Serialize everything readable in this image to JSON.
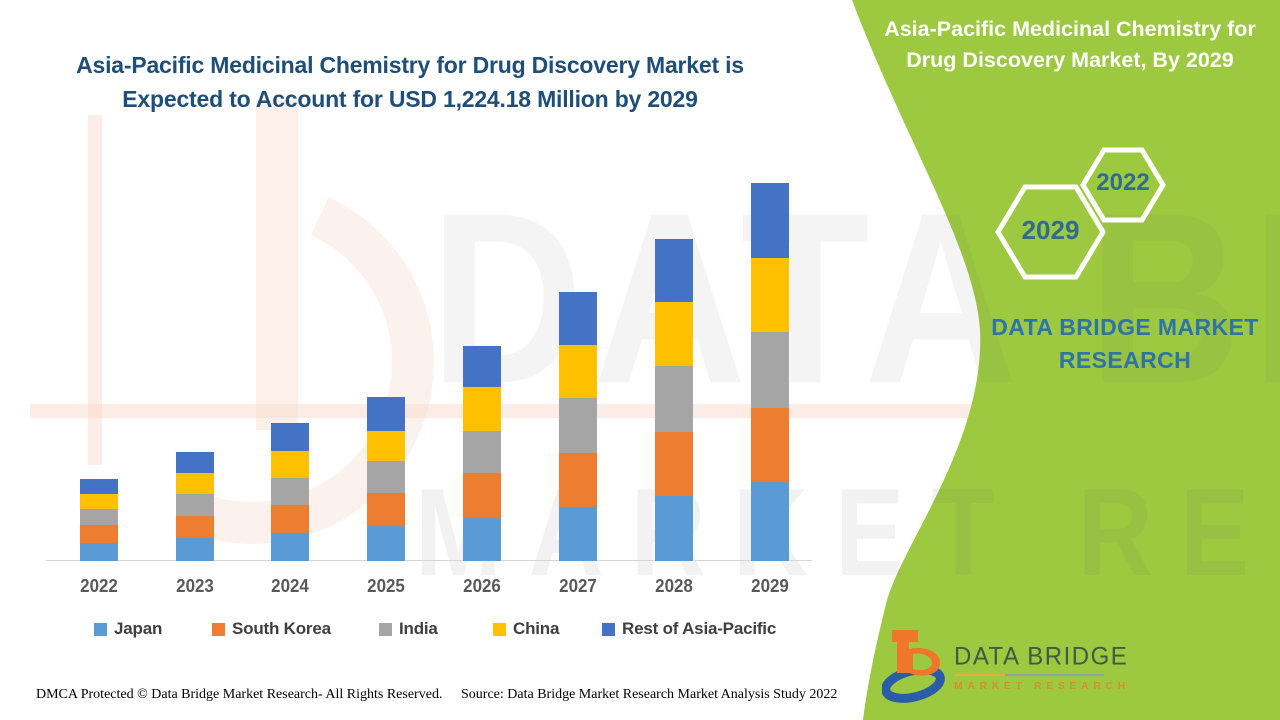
{
  "left_section": {
    "title_line1": "Asia-Pacific Medicinal Chemistry for Drug Discovery Market is",
    "title_line2": "Expected to Account for USD 1,224.18 Million by 2029",
    "footer_left": "DMCA Protected © Data Bridge Market Research- All Rights Reserved.",
    "footer_right": "Source: Data Bridge Market Research Market Analysis Study 2022"
  },
  "right_panel": {
    "title_line1": "Asia-Pacific Medicinal Chemistry for",
    "title_line2": "Drug Discovery Market, By 2029",
    "hexagon_small_year": "2022",
    "hexagon_large_year": "2029",
    "brand_line1": "DATA BRIDGE MARKET",
    "brand_line2": "RESEARCH",
    "logo_name": "DATA BRIDGE",
    "logo_subname": "MARKET RESEARCH"
  },
  "watermarks": {
    "big_text": "DATA BRIDGE",
    "small_text": "MARKET RESEARCH"
  },
  "colors": {
    "green_panel": "#9CC93F",
    "headline_navy": "#1F4E79",
    "hexagon_year_blue": "#2F6C93",
    "brand_blue": "#2E74A8",
    "axis_line": "#D6D6D6",
    "year_label_gray": "#595959",
    "legend_text_gray": "#3F3F3F",
    "logo_orange": "#F0762B",
    "logo_blue": "#2B5CA8",
    "logo_dark_green": "#41584B"
  },
  "chart_data": {
    "type": "bar",
    "stacked": true,
    "unit": "USD Million",
    "values_are_estimates": true,
    "stated_total_2029": 1224.18,
    "categories": [
      "2022",
      "2023",
      "2024",
      "2025",
      "2026",
      "2027",
      "2028",
      "2029"
    ],
    "series": [
      {
        "name": "Japan",
        "color": "#5B9BD5",
        "values": [
          58,
          75,
          91,
          113,
          139,
          175,
          211,
          256
        ]
      },
      {
        "name": "South Korea",
        "color": "#ED7D31",
        "values": [
          58,
          71,
          91,
          107,
          146,
          175,
          207,
          240
        ]
      },
      {
        "name": "India",
        "color": "#A5A5A5",
        "values": [
          52,
          71,
          87,
          104,
          136,
          178,
          214,
          246
        ]
      },
      {
        "name": "China",
        "color": "#FFC000",
        "values": [
          49,
          68,
          87,
          97,
          142,
          172,
          207,
          240
        ]
      },
      {
        "name": "Rest of Asia-Pacific",
        "color": "#4472C4",
        "values": [
          49,
          68,
          91,
          110,
          133,
          172,
          204,
          243
        ]
      }
    ],
    "ylim": [
      0,
      1300
    ],
    "gridlines": false,
    "legend_position": "bottom",
    "title": "Asia-Pacific Medicinal Chemistry for Drug Discovery Market is Expected to Account for USD 1,224.18 Million by 2029"
  }
}
